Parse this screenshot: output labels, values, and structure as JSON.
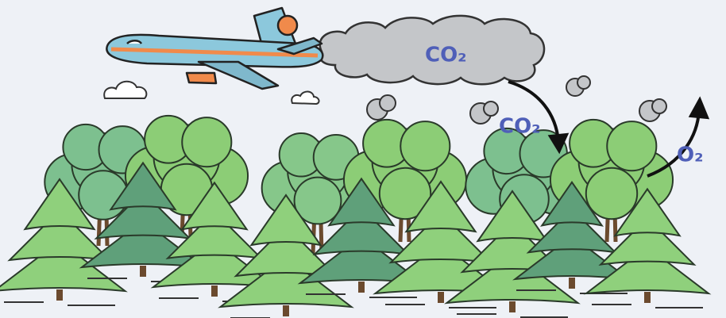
{
  "labels": [
    "CO₂",
    "CO₂",
    "O₂"
  ]
}
